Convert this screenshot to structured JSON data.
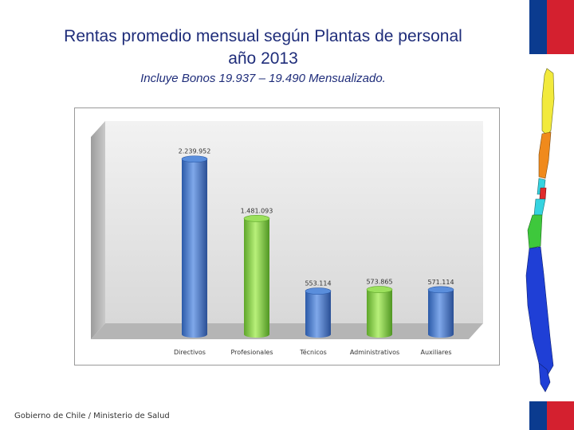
{
  "header": {
    "title_line1": "Rentas promedio mensual  según Plantas de personal",
    "title_line2": "año 2013",
    "subtitle": "Incluye Bonos 19.937 – 19.490 Mensualizado."
  },
  "footer": {
    "text": "Gobierno de Chile / Ministerio de Salud"
  },
  "colors": {
    "title": "#1f2d7a",
    "flag_blue": "#0b3b8f",
    "flag_red": "#d4202f",
    "bar_blue": "#4a7fd0",
    "bar_green": "#8fd14f"
  },
  "chart_data": {
    "type": "bar",
    "title": "",
    "xlabel": "",
    "ylabel": "",
    "categories": [
      "Directivos",
      "Profesionales",
      "Técnicos",
      "Administrativos",
      "Auxiliares"
    ],
    "values": [
      2239952,
      1481093,
      553114,
      573865,
      571114
    ],
    "value_labels": [
      "2.239.952",
      "1.481.093",
      "553.114",
      "573.865",
      "571.114"
    ],
    "bar_colors": [
      "blue",
      "green",
      "blue",
      "green",
      "blue"
    ],
    "ylim": [
      0,
      2400000
    ],
    "grid": false,
    "legend": "none",
    "style": "3d-cylinder"
  }
}
